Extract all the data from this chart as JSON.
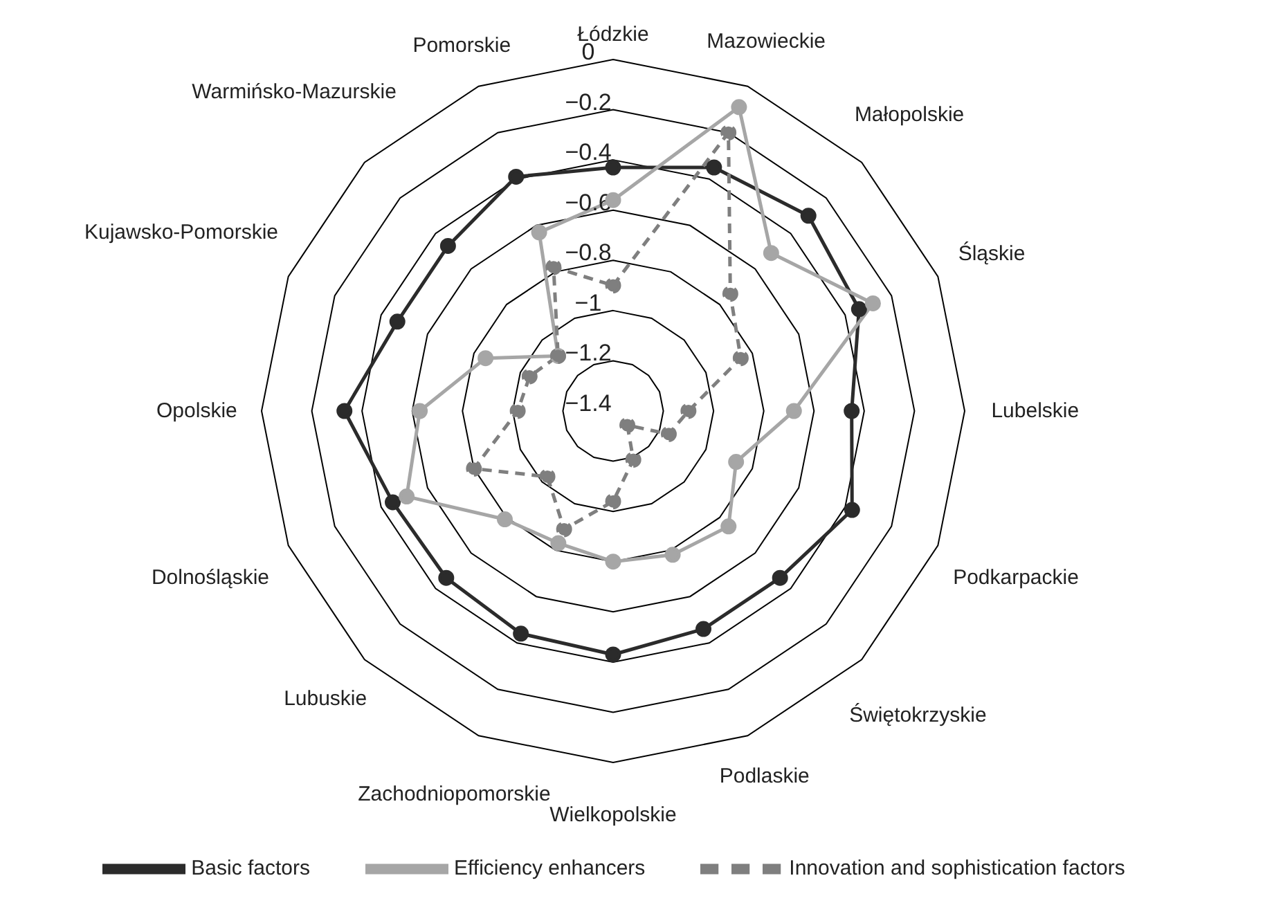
{
  "chart_data": {
    "type": "radar",
    "categories": [
      "Łódzkie",
      "Mazowieckie",
      "Małopolskie",
      "Śląskie",
      "Lubelskie",
      "Podkarpackie",
      "Świętokrzyskie",
      "Podlaskie",
      "Wielkopolskie",
      "Zachodniopomorskie",
      "Lubuskie",
      "Dolnośląskie",
      "Opolskie",
      "Kujawsko-Pomorskie",
      "Warmińsko-Mazurskie",
      "Pomorskie"
    ],
    "ylim": [
      -1.4,
      0
    ],
    "yticks": [
      {
        "value": -1.4,
        "label": "−1.4"
      },
      {
        "value": -1.2,
        "label": "−1.2"
      },
      {
        "value": -1,
        "label": "−1"
      },
      {
        "value": -0.8,
        "label": "−0.8"
      },
      {
        "value": -0.6,
        "label": "−0.6"
      },
      {
        "value": -0.4,
        "label": "−0.4"
      },
      {
        "value": -0.2,
        "label": "−0.2"
      },
      0
    ],
    "grid": true,
    "legend": "bottom",
    "marker": "circle",
    "series": [
      {
        "name": "Basic factors",
        "color": "#2b2b2b",
        "line_style": "solid",
        "values": [
          -0.43,
          -0.35,
          -0.3,
          -0.34,
          -0.45,
          -0.37,
          -0.46,
          -0.46,
          -0.43,
          -0.44,
          -0.46,
          -0.45,
          -0.33,
          -0.47,
          -0.47,
          -0.39
        ]
      },
      {
        "name": "Efficiency enhancers",
        "color": "#a6a6a6",
        "line_style": "solid",
        "values": [
          -0.56,
          -0.09,
          -0.51,
          -0.28,
          -0.68,
          -0.87,
          -0.75,
          -0.78,
          -0.8,
          -0.83,
          -0.79,
          -0.51,
          -0.63,
          -0.85,
          -1.09,
          -0.63
        ]
      },
      {
        "name": "Innovation and sophistication factors",
        "color": "#7f7f7f",
        "line_style": "dashed",
        "values": [
          -0.9,
          -0.2,
          -0.74,
          -0.85,
          -1.1,
          -1.16,
          -1.32,
          -1.19,
          -1.04,
          -0.89,
          -1.03,
          -0.8,
          -1.02,
          -1.04,
          -1.09,
          -0.78
        ]
      }
    ]
  }
}
